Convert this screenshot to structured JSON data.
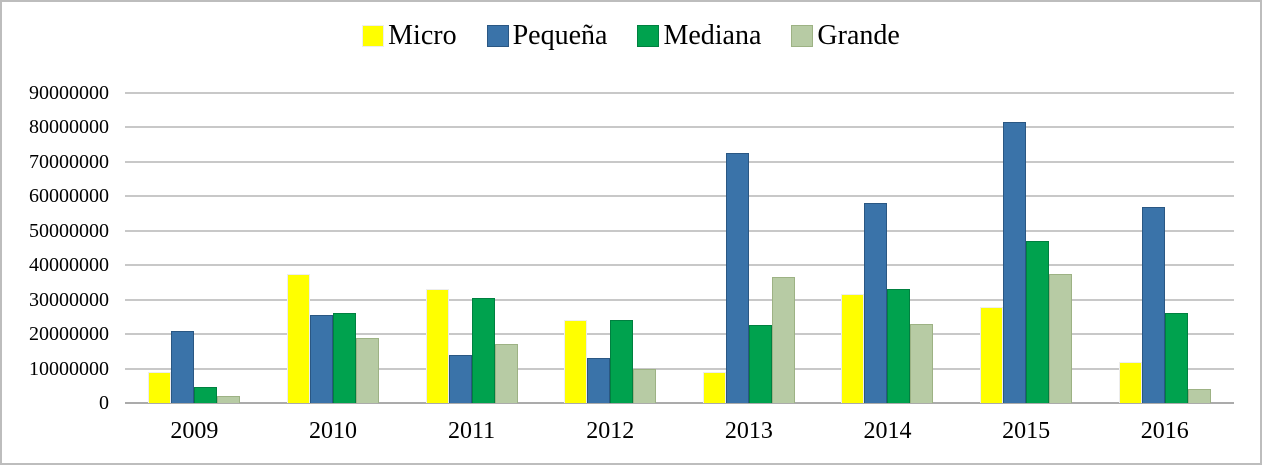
{
  "chart_data": {
    "type": "bar",
    "title": "",
    "xlabel": "",
    "ylabel": "",
    "categories": [
      "2009",
      "2010",
      "2011",
      "2012",
      "2013",
      "2014",
      "2015",
      "2016"
    ],
    "series": [
      {
        "name": "Micro",
        "color": "#ffff00",
        "border_color": "#ededed",
        "values": [
          9000000,
          37500000,
          33000000,
          24000000,
          9000000,
          31500000,
          28000000,
          12000000
        ]
      },
      {
        "name": "Pequeña",
        "color": "#3a73a9",
        "border_color": "#2a5783",
        "values": [
          21000000,
          25500000,
          14000000,
          13000000,
          72500000,
          58000000,
          81500000,
          57000000
        ]
      },
      {
        "name": "Mediana",
        "color": "#00a24e",
        "border_color": "#008040",
        "values": [
          4500000,
          26000000,
          30500000,
          24000000,
          22500000,
          33000000,
          47000000,
          26000000
        ]
      },
      {
        "name": "Grande",
        "color": "#b7cba4",
        "border_color": "#9db284",
        "values": [
          2000000,
          19000000,
          17000000,
          10000000,
          36500000,
          23000000,
          37500000,
          4000000
        ]
      }
    ],
    "ylim": [
      0,
      90000000
    ],
    "y_ticks": [
      0,
      10000000,
      20000000,
      30000000,
      40000000,
      50000000,
      60000000,
      70000000,
      80000000,
      90000000
    ],
    "y_tick_labels": [
      "0",
      "10000000",
      "20000000",
      "30000000",
      "40000000",
      "50000000",
      "60000000",
      "70000000",
      "80000000",
      "90000000"
    ],
    "grid": true,
    "legend_position": "top"
  },
  "colors": {
    "background": "#ffffff",
    "page_border": "#bdbdbd",
    "gridline": "#c8c8c8",
    "axis_line": "#ababab",
    "text": "#000000"
  }
}
